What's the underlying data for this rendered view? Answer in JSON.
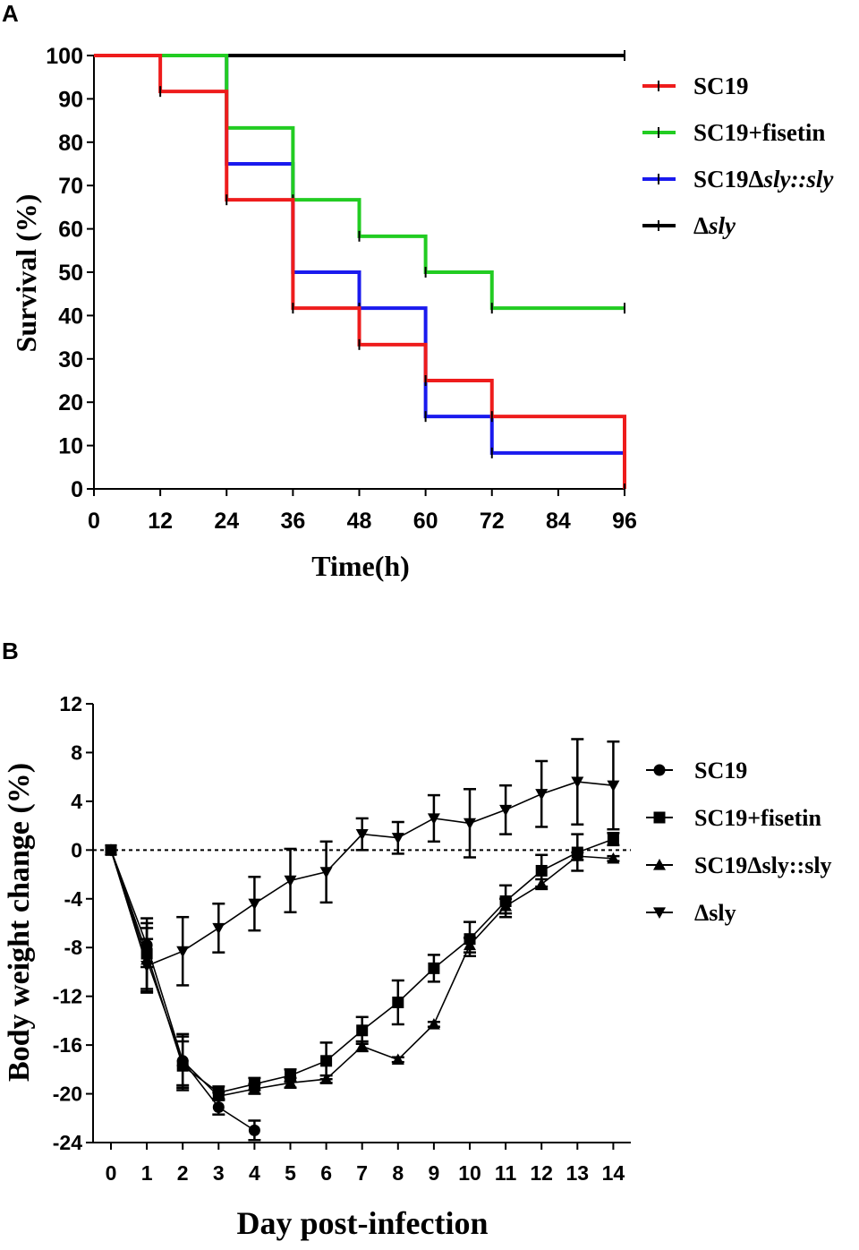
{
  "chart_data": [
    {
      "panel": "A",
      "type": "line",
      "subtype": "step",
      "xlabel": "Time(h)",
      "ylabel": "Survival (%)",
      "xlim": [
        0,
        96
      ],
      "ylim": [
        0,
        100
      ],
      "xticks": [
        "0",
        "12",
        "24",
        "36",
        "48",
        "60",
        "72",
        "84",
        "96"
      ],
      "yticks": [
        "0",
        "10",
        "20",
        "30",
        "40",
        "50",
        "60",
        "70",
        "80",
        "90",
        "100"
      ],
      "series": [
        {
          "name": "SC19",
          "color": "#ee1c1c",
          "x": [
            0,
            12,
            24,
            36,
            48,
            60,
            72,
            96
          ],
          "y": [
            100,
            91.7,
            66.7,
            41.7,
            33.3,
            25,
            16.7,
            0
          ]
        },
        {
          "name": "SC19+fisetin",
          "color": "#22cc22",
          "x": [
            0,
            24,
            36,
            48,
            60,
            72,
            96
          ],
          "y": [
            100,
            83.3,
            66.7,
            58.3,
            50,
            41.7,
            41.7
          ]
        },
        {
          "name": "SC19Δsly::sly",
          "color": "#1a1aee",
          "x": [
            0,
            24,
            36,
            48,
            60,
            72,
            96
          ],
          "y": [
            100,
            75,
            50,
            41.7,
            16.7,
            8.3,
            8.3
          ]
        },
        {
          "name": "Δsly",
          "color": "#000000",
          "x": [
            0,
            96
          ],
          "y": [
            100,
            100
          ]
        }
      ],
      "legend": {
        "position": "right",
        "labels": [
          {
            "base": "SC19",
            "italic": ""
          },
          {
            "base": "SC19+fisetin",
            "italic": ""
          },
          {
            "base": "SC19Δ",
            "italic": "sly::sly"
          },
          {
            "base": "Δ",
            "italic": "sly"
          }
        ]
      }
    },
    {
      "panel": "B",
      "type": "line",
      "subtype": "errorbar",
      "xlabel": "Day post-infection",
      "ylabel": "Body weight change (%)",
      "xlim": [
        0,
        14
      ],
      "ylim": [
        -24,
        12
      ],
      "xticks": [
        "0",
        "1",
        "2",
        "3",
        "4",
        "5",
        "6",
        "7",
        "8",
        "9",
        "10",
        "11",
        "12",
        "13",
        "14"
      ],
      "yticks": [
        "-24",
        "-20",
        "-16",
        "-12",
        "-8",
        "-4",
        "0",
        "4",
        "8",
        "12"
      ],
      "reference_line": 0,
      "series": [
        {
          "name": "SC19",
          "marker": "circle",
          "x": [
            0,
            1,
            2,
            3,
            4
          ],
          "y": [
            0,
            -7.8,
            -17.3,
            -21.1,
            -23.0
          ],
          "err": [
            0,
            1.8,
            2.0,
            0.6,
            0.8
          ]
        },
        {
          "name": "SC19+fisetin",
          "marker": "square",
          "x": [
            0,
            1,
            2,
            3,
            4,
            5,
            6,
            7,
            8,
            9,
            10,
            11,
            12,
            13,
            14
          ],
          "y": [
            0,
            -8.5,
            -17.7,
            -19.9,
            -19.2,
            -18.5,
            -17.3,
            -14.8,
            -12.5,
            -9.7,
            -7.3,
            -4.2,
            -1.7,
            -0.2,
            0.9
          ],
          "err": [
            0,
            2.9,
            2.0,
            0.5,
            0.5,
            0.5,
            1.5,
            1.1,
            1.8,
            1.1,
            1.4,
            1.3,
            1.3,
            1.5,
            0.5
          ]
        },
        {
          "name": "SC19Δsly::sly",
          "marker": "triangle-up",
          "x": [
            0,
            1,
            2,
            3,
            4,
            5,
            6,
            7,
            8,
            9,
            10,
            11,
            12,
            13,
            14
          ],
          "y": [
            0,
            -9.0,
            -17.3,
            -20.2,
            -19.6,
            -19.1,
            -18.8,
            -16.1,
            -17.2,
            -14.3,
            -7.8,
            -4.6,
            -2.8,
            -0.5,
            -0.7
          ],
          "err": [
            0,
            2.6,
            2.2,
            0.3,
            0.4,
            0.4,
            0.3,
            0.4,
            0.2,
            0.2,
            0.6,
            0.6,
            0.4,
            0.3,
            0.2
          ]
        },
        {
          "name": "Δsly",
          "marker": "triangle-down",
          "x": [
            0,
            1,
            2,
            3,
            4,
            5,
            6,
            7,
            8,
            9,
            10,
            11,
            12,
            13,
            14
          ],
          "y": [
            0,
            -9.5,
            -8.3,
            -6.4,
            -4.4,
            -2.5,
            -1.8,
            1.3,
            1.0,
            2.6,
            2.2,
            3.3,
            4.6,
            5.6,
            5.3
          ],
          "err": [
            0,
            2.2,
            2.8,
            2.0,
            2.2,
            2.6,
            2.5,
            1.3,
            1.3,
            1.9,
            2.8,
            2.0,
            2.7,
            3.5,
            3.6
          ]
        }
      ],
      "legend": {
        "position": "right",
        "labels": [
          "SC19",
          "SC19+fisetin",
          "SC19Δsly::sly",
          "Δsly"
        ]
      }
    }
  ]
}
